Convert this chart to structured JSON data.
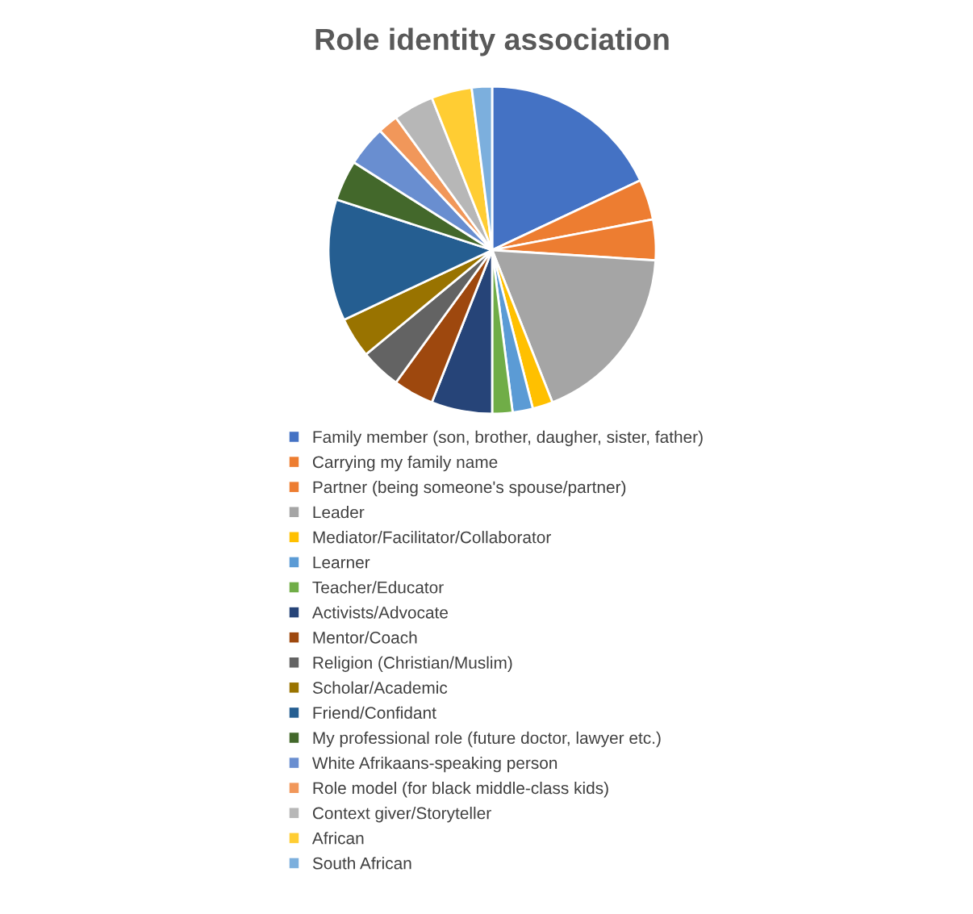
{
  "chart_data": {
    "type": "pie",
    "title": "Role identity association",
    "categories": [
      "Family member (son, brother, daugher, sister, father)",
      "Carrying my family name",
      "Partner (being someone's spouse/partner)",
      "Leader",
      "Mediator/Facilitator/Collaborator",
      "Learner",
      "Teacher/Educator",
      "Activists/Advocate",
      "Mentor/Coach",
      "Religion (Christian/Muslim)",
      "Scholar/Academic",
      "Friend/Confidant",
      "My professional role (future doctor, lawyer etc.)",
      "White Afrikaans-speaking person",
      "Role model (for black middle-class kids)",
      "Context giver/Storyteller",
      "African",
      "South African"
    ],
    "values": [
      18,
      4,
      4,
      18,
      2,
      2,
      2,
      6,
      4,
      4,
      4,
      12,
      4,
      4,
      2,
      4,
      4,
      2
    ],
    "colors": [
      "#4472c4",
      "#ed7d31",
      "#ed7d31",
      "#a5a5a5",
      "#ffc000",
      "#5b9bd5",
      "#70ad47",
      "#264478",
      "#9e480e",
      "#636363",
      "#997300",
      "#255e91",
      "#43682b",
      "#698ed0",
      "#f1975a",
      "#b7b7b7",
      "#ffcd33",
      "#7cafdd"
    ],
    "legend": "bottom"
  }
}
